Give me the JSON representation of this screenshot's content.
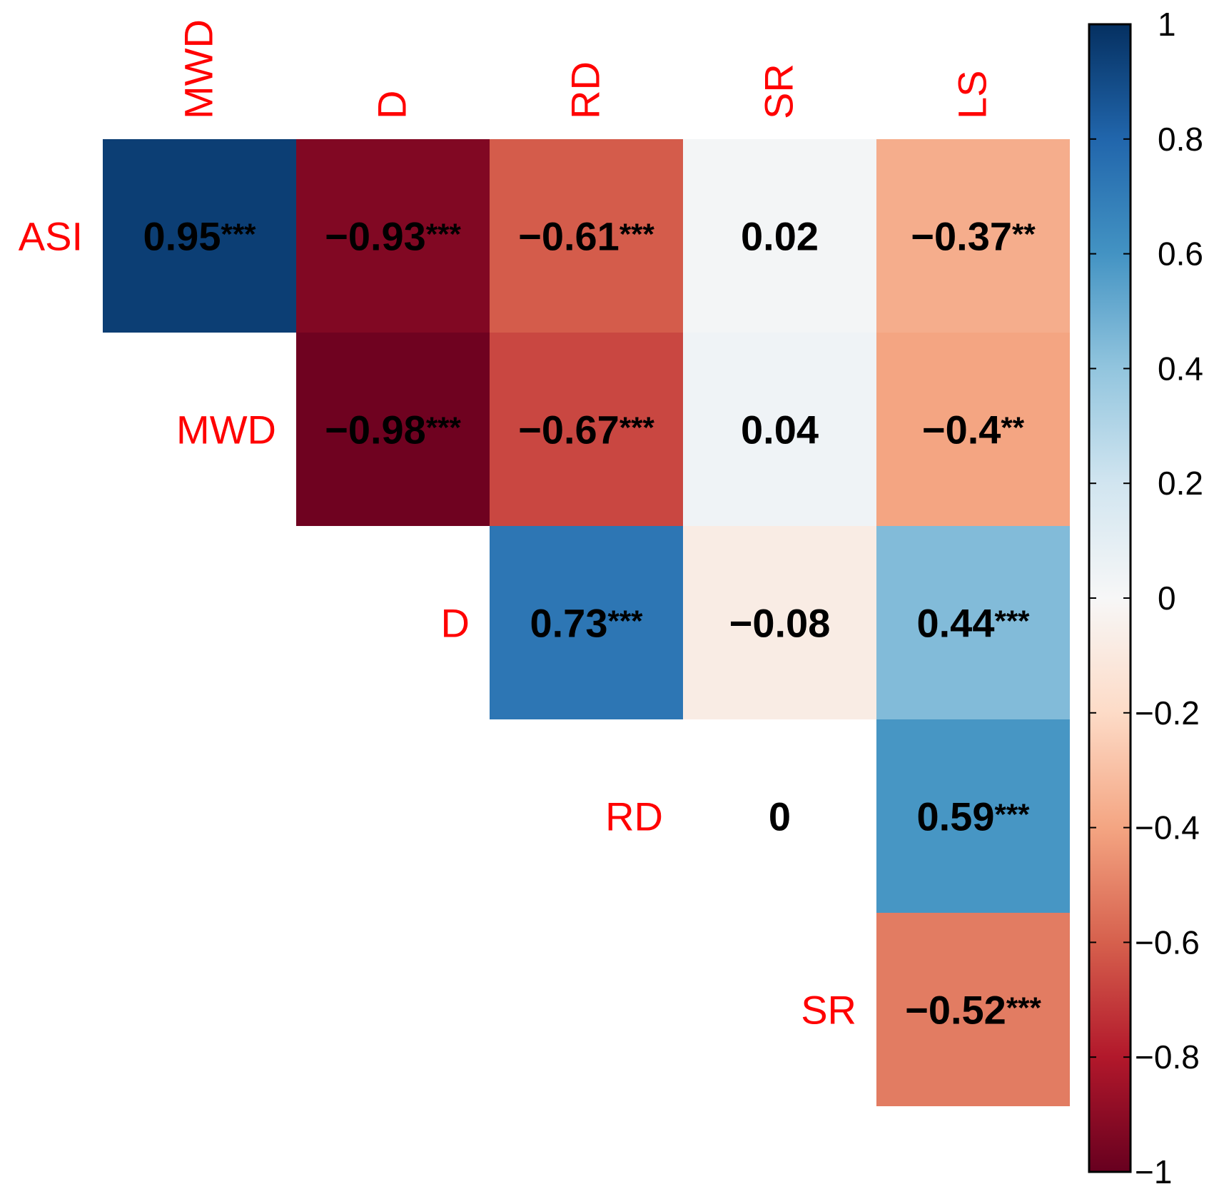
{
  "chart_data": {
    "type": "heatmap",
    "layout": "upper-triangle correlation matrix",
    "rows": [
      "ASI",
      "MWD",
      "D",
      "RD",
      "SR"
    ],
    "columns": [
      "MWD",
      "D",
      "RD",
      "SR",
      "LS"
    ],
    "cells": [
      {
        "row": "ASI",
        "col": "MWD",
        "value": 0.95,
        "label": "0.95",
        "stars": "***"
      },
      {
        "row": "ASI",
        "col": "D",
        "value": -0.93,
        "label": "−0.93",
        "stars": "***"
      },
      {
        "row": "ASI",
        "col": "RD",
        "value": -0.61,
        "label": "−0.61",
        "stars": "***"
      },
      {
        "row": "ASI",
        "col": "SR",
        "value": 0.02,
        "label": "0.02",
        "stars": ""
      },
      {
        "row": "ASI",
        "col": "LS",
        "value": -0.37,
        "label": "−0.37",
        "stars": "**"
      },
      {
        "row": "MWD",
        "col": "D",
        "value": -0.98,
        "label": "−0.98",
        "stars": "***"
      },
      {
        "row": "MWD",
        "col": "RD",
        "value": -0.67,
        "label": "−0.67",
        "stars": "***"
      },
      {
        "row": "MWD",
        "col": "SR",
        "value": 0.04,
        "label": "0.04",
        "stars": ""
      },
      {
        "row": "MWD",
        "col": "LS",
        "value": -0.4,
        "label": "−0.4",
        "stars": "**"
      },
      {
        "row": "D",
        "col": "RD",
        "value": 0.73,
        "label": "0.73",
        "stars": "***"
      },
      {
        "row": "D",
        "col": "SR",
        "value": -0.08,
        "label": "−0.08",
        "stars": ""
      },
      {
        "row": "D",
        "col": "LS",
        "value": 0.44,
        "label": "0.44",
        "stars": "***"
      },
      {
        "row": "RD",
        "col": "SR",
        "value": 0,
        "label": "0",
        "stars": ""
      },
      {
        "row": "RD",
        "col": "LS",
        "value": 0.59,
        "label": "0.59",
        "stars": "***"
      },
      {
        "row": "SR",
        "col": "LS",
        "value": -0.52,
        "label": "−0.52",
        "stars": "***"
      }
    ],
    "colorbar": {
      "range": [
        -1,
        1
      ],
      "ticks": [
        1,
        0.8,
        0.6,
        0.4,
        0.2,
        0,
        -0.2,
        -0.4,
        -0.6,
        -0.8,
        -1
      ],
      "tick_labels": [
        "1",
        "0.8",
        "0.6",
        "0.4",
        "0.2",
        "0",
        "−0.2",
        "−0.4",
        "−0.6",
        "−0.8",
        "−1"
      ],
      "colormap": "RdBu"
    },
    "label_color": "#ff0000",
    "value_color": "#000000"
  }
}
